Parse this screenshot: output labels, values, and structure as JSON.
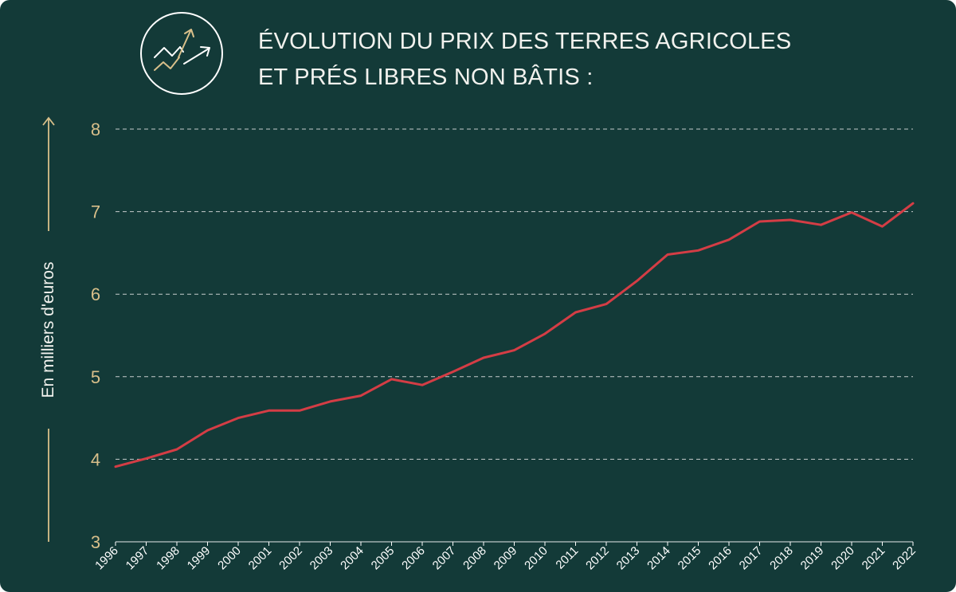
{
  "header": {
    "title_line1": "ÉVOLUTION DU PRIX DES TERRES AGRICOLES",
    "title_line2": "ET PRÉS LIBRES NON BÂTIS :",
    "icon": "trending-up-icon"
  },
  "colors": {
    "background": "#133a38",
    "line": "#d43d45",
    "accent": "#d8bf8a",
    "grid": "#e6e6e6",
    "text": "#ffffff"
  },
  "chart_data": {
    "type": "line",
    "title": "ÉVOLUTION DU PRIX DES TERRES AGRICOLES ET PRÉS LIBRES NON BÂTIS :",
    "xlabel": "",
    "ylabel": "En milliers d'euros",
    "ylim": [
      3,
      8
    ],
    "yticks": [
      "3",
      "4",
      "5",
      "6",
      "7",
      "8"
    ],
    "grid": true,
    "categories": [
      "1996",
      "1997",
      "1998",
      "1999",
      "2000",
      "2001",
      "2002",
      "2003",
      "2004",
      "2005",
      "2006",
      "2007",
      "2008",
      "2009",
      "2010",
      "2011",
      "2012",
      "2013",
      "2014",
      "2015",
      "2016",
      "2017",
      "2018",
      "2019",
      "2020",
      "2021",
      "2022"
    ],
    "series": [
      {
        "name": "Prix des terres agricoles et prés libres non bâtis",
        "values": [
          3.91,
          4.01,
          4.12,
          4.35,
          4.5,
          4.59,
          4.59,
          4.7,
          4.77,
          4.97,
          4.9,
          5.06,
          5.23,
          5.32,
          5.52,
          5.78,
          5.88,
          6.16,
          6.48,
          6.53,
          6.66,
          6.88,
          6.9,
          6.84,
          6.99,
          6.82,
          7.1
        ]
      }
    ]
  }
}
